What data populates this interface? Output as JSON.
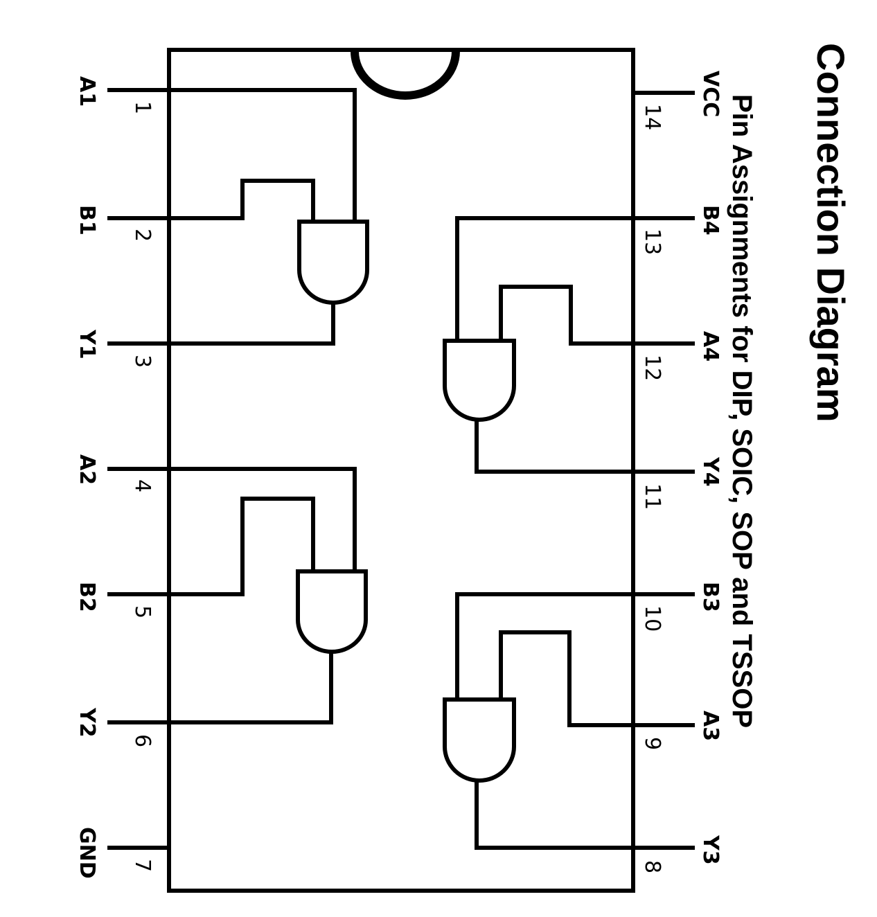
{
  "title": "Connection Diagram",
  "subtitle": "Pin Assignments for DIP, SOIC, SOP and TSSOP",
  "pins_left": [
    {
      "num": "1",
      "label": "A1"
    },
    {
      "num": "2",
      "label": "B1"
    },
    {
      "num": "3",
      "label": "Y1"
    },
    {
      "num": "4",
      "label": "A2"
    },
    {
      "num": "5",
      "label": "B2"
    },
    {
      "num": "6",
      "label": "Y2"
    },
    {
      "num": "7",
      "label": "GND"
    }
  ],
  "pins_right": [
    {
      "num": "14",
      "label": "VCC"
    },
    {
      "num": "13",
      "label": "B4"
    },
    {
      "num": "12",
      "label": "A4"
    },
    {
      "num": "11",
      "label": "Y4"
    },
    {
      "num": "10",
      "label": "B3"
    },
    {
      "num": "9",
      "label": "A3"
    },
    {
      "num": "8",
      "label": "Y3"
    }
  ],
  "colors": {
    "line": "#000000",
    "background": "#ffffff"
  }
}
